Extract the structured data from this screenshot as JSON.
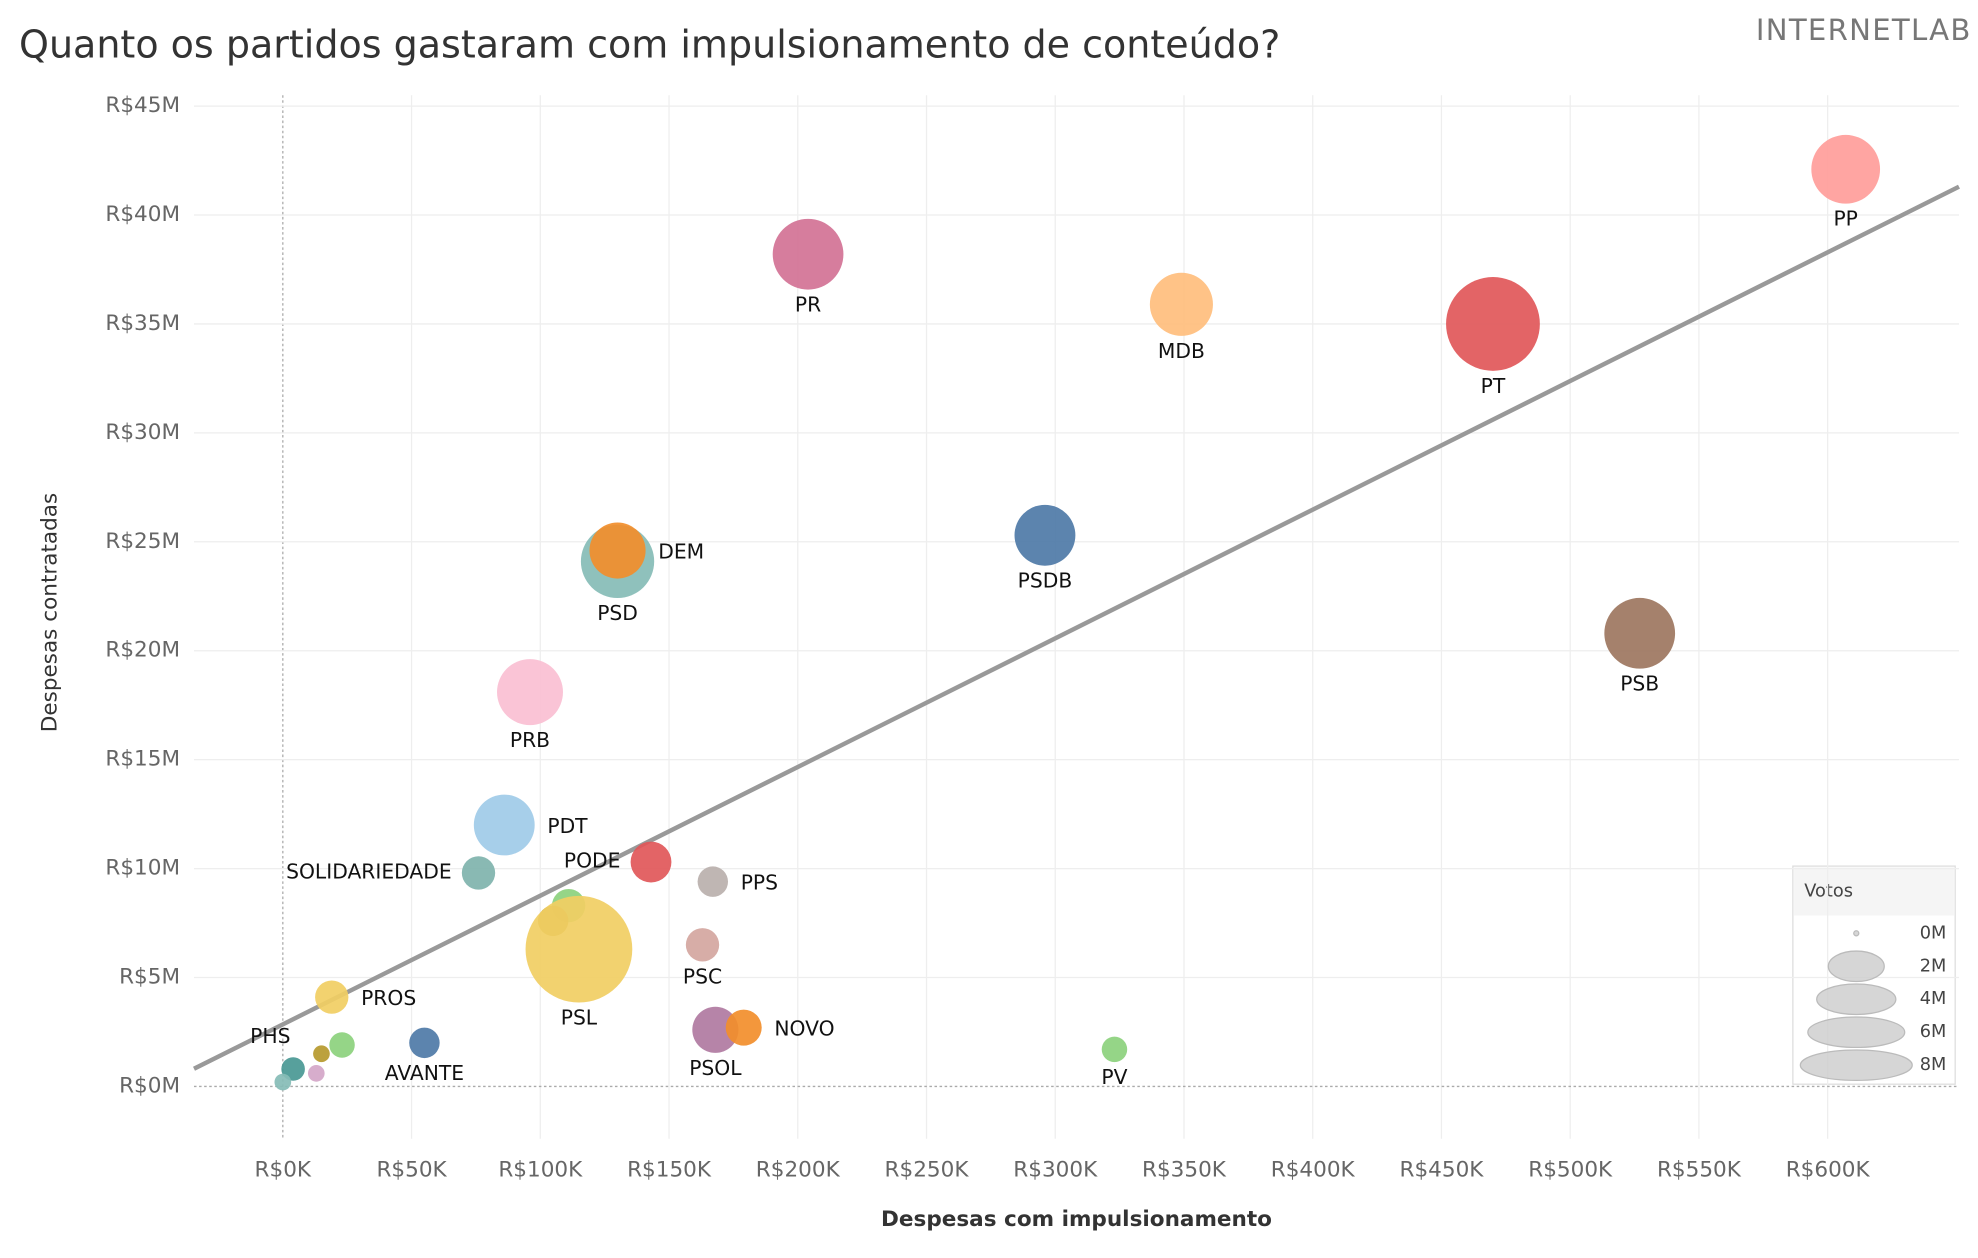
{
  "chart_data": {
    "type": "scatter",
    "title": "Quanto os partidos gastaram com impulsionamento de conteúdo?",
    "logo": "INTERNETLAB",
    "x_label": "Despesas com impulsionamento",
    "y_label": "Despesas contratadas",
    "xlim": [
      -34500,
      651000
    ],
    "ylim": [
      -2400000,
      45500000
    ],
    "xticks": [
      {
        "value": 0,
        "label": "R$0K"
      },
      {
        "value": 50000,
        "label": "R$50K"
      },
      {
        "value": 100000,
        "label": "R$100K"
      },
      {
        "value": 150000,
        "label": "R$150K"
      },
      {
        "value": 200000,
        "label": "R$200K"
      },
      {
        "value": 250000,
        "label": "R$250K"
      },
      {
        "value": 300000,
        "label": "R$300K"
      },
      {
        "value": 350000,
        "label": "R$350K"
      },
      {
        "value": 400000,
        "label": "R$400K"
      },
      {
        "value": 450000,
        "label": "R$450K"
      },
      {
        "value": 500000,
        "label": "R$500K"
      },
      {
        "value": 550000,
        "label": "R$550K"
      },
      {
        "value": 600000,
        "label": "R$600K"
      }
    ],
    "yticks": [
      {
        "value": 0,
        "label": "R$0M"
      },
      {
        "value": 5000000,
        "label": "R$5M"
      },
      {
        "value": 10000000,
        "label": "R$10M"
      },
      {
        "value": 15000000,
        "label": "R$15M"
      },
      {
        "value": 20000000,
        "label": "R$20M"
      },
      {
        "value": 25000000,
        "label": "R$25M"
      },
      {
        "value": 30000000,
        "label": "R$30M"
      },
      {
        "value": 35000000,
        "label": "R$35M"
      },
      {
        "value": 40000000,
        "label": "R$40M"
      },
      {
        "value": 45000000,
        "label": "R$45M"
      }
    ],
    "grid": true,
    "trend_line": {
      "color": "#999999",
      "x": [
        -34500,
        651000
      ],
      "y": [
        810000,
        41300000
      ]
    },
    "points": [
      {
        "label": "PP",
        "x": 607000,
        "y": 42100000,
        "votes": 5.1,
        "color": "#ff9d9a"
      },
      {
        "label": "PR",
        "x": 204000,
        "y": 38200000,
        "votes": 5.4,
        "color": "#d37295"
      },
      {
        "label": "MDB",
        "x": 349000,
        "y": 35900000,
        "votes": 4.3,
        "color": "#ffbe7d"
      },
      {
        "label": "PT",
        "x": 470000,
        "y": 35000000,
        "votes": 9.5,
        "color": "#e15759"
      },
      {
        "label": "PSDB",
        "x": 296000,
        "y": 25300000,
        "votes": 4.0,
        "color": "#4e79a7"
      },
      {
        "label": "PSB",
        "x": 527000,
        "y": 20800000,
        "votes": 5.4,
        "color": "#9d7660"
      },
      {
        "label": "PSD",
        "x": 130000,
        "y": 24100000,
        "votes": 5.8,
        "color": "#86bcb6"
      },
      {
        "label": "DEM",
        "x": 130000,
        "y": 24600000,
        "votes": 3.4,
        "color": "#f28e2b"
      },
      {
        "label": "PRB",
        "x": 96000,
        "y": 18100000,
        "votes": 4.7,
        "color": "#fabfd2"
      },
      {
        "label": "PDT",
        "x": 86000,
        "y": 12000000,
        "votes": 4.0,
        "color": "#a0cbe8"
      },
      {
        "label": "SOLIDARIEDADE",
        "x": 76000,
        "y": 9800000,
        "votes": 1.2,
        "color": "#7fb3ac"
      },
      {
        "label": "PODE",
        "x": 143000,
        "y": 10300000,
        "votes": 1.8,
        "color": "#e15759"
      },
      {
        "label": "PPS",
        "x": 167000,
        "y": 9400000,
        "votes": 1.0,
        "color": "#bab0ac"
      },
      {
        "label": null,
        "x": 111000,
        "y": 8300000,
        "votes": 1.2,
        "color": "#8cd17d"
      },
      {
        "label": null,
        "x": 105000,
        "y": 7600000,
        "votes": 1.0,
        "color": "#b6992d"
      },
      {
        "label": "PSL",
        "x": 115000,
        "y": 6300000,
        "votes": 12.3,
        "color": "#f1ce63"
      },
      {
        "label": "PSC",
        "x": 163000,
        "y": 6500000,
        "votes": 1.2,
        "color": "#d4a6a0"
      },
      {
        "label": "PROS",
        "x": 19000,
        "y": 4100000,
        "votes": 1.2,
        "color": "#f1ce63"
      },
      {
        "label": "PSOL",
        "x": 168000,
        "y": 2600000,
        "votes": 2.3,
        "color": "#b07aa1"
      },
      {
        "label": "NOVO",
        "x": 179000,
        "y": 2700000,
        "votes": 1.4,
        "color": "#f28e2b"
      },
      {
        "label": "AVANTE",
        "x": 55000,
        "y": 2000000,
        "votes": 1.0,
        "color": "#4e79a7"
      },
      {
        "label": "PV",
        "x": 323000,
        "y": 1700000,
        "votes": 0.7,
        "color": "#8cd17d"
      },
      {
        "label": "PHS",
        "x": 4000,
        "y": 800000,
        "votes": 0.6,
        "color": "#499894"
      },
      {
        "label": null,
        "x": 23000,
        "y": 1900000,
        "votes": 0.7,
        "color": "#8cd17d"
      },
      {
        "label": null,
        "x": 15000,
        "y": 1500000,
        "votes": 0.3,
        "color": "#b6992d"
      },
      {
        "label": null,
        "x": 13000,
        "y": 600000,
        "votes": 0.3,
        "color": "#d4a6c8"
      },
      {
        "label": null,
        "x": 0,
        "y": 200000,
        "votes": 0.3,
        "color": "#86bcb6"
      }
    ],
    "legend": {
      "title": "Votos",
      "position": "lower right",
      "sizes": [
        {
          "value": 0,
          "label": "0M"
        },
        {
          "value": 2,
          "label": "2M"
        },
        {
          "value": 4,
          "label": "4M"
        },
        {
          "value": 6,
          "label": "6M"
        },
        {
          "value": 8,
          "label": "8M"
        }
      ]
    }
  }
}
